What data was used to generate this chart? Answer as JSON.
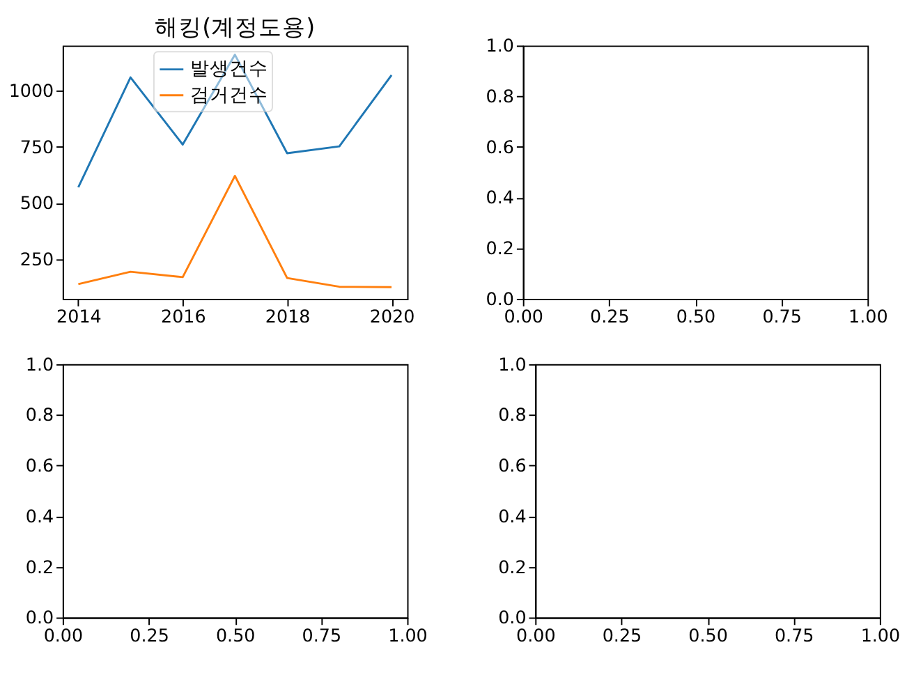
{
  "chart_data": [
    {
      "type": "line",
      "title": "해킹(계정도용)",
      "x": [
        2014,
        2015,
        2016,
        2017,
        2018,
        2019,
        2020
      ],
      "xlim": [
        2013.7,
        2020.3
      ],
      "xticks": [
        2014,
        2016,
        2018,
        2020
      ],
      "ylim": [
        72,
        1203
      ],
      "yticks": [
        250,
        500,
        750,
        1000
      ],
      "grid": false,
      "legend": "top",
      "series": [
        {
          "name": "발생건수",
          "color": "#1f77b4",
          "values": [
            570,
            1061,
            761,
            1162,
            722,
            753,
            1071
          ]
        },
        {
          "name": "검거건수",
          "color": "#ff7f0e",
          "values": [
            138,
            193,
            169,
            621,
            165,
            126,
            124
          ]
        }
      ]
    },
    {
      "type": "line",
      "xlim": [
        0,
        1
      ],
      "ylim": [
        0,
        1
      ],
      "grid": false,
      "xticks": [
        {
          "value": 0,
          "label": "0.00"
        },
        {
          "value": 0.25,
          "label": "0.25"
        },
        {
          "value": 0.5,
          "label": "0.50"
        },
        {
          "value": 0.75,
          "label": "0.75"
        },
        {
          "value": 1,
          "label": "1.00"
        }
      ],
      "yticks": [
        {
          "value": 0,
          "label": "0.0"
        },
        {
          "value": 0.2,
          "label": "0.2"
        },
        {
          "value": 0.4,
          "label": "0.4"
        },
        {
          "value": 0.6,
          "label": "0.6"
        },
        {
          "value": 0.8,
          "label": "0.8"
        },
        {
          "value": 1,
          "label": "1.0"
        }
      ]
    },
    {
      "type": "line",
      "xlim": [
        0,
        1
      ],
      "ylim": [
        0,
        1
      ],
      "grid": false,
      "xticks": [
        {
          "value": 0,
          "label": "0.00"
        },
        {
          "value": 0.25,
          "label": "0.25"
        },
        {
          "value": 0.5,
          "label": "0.50"
        },
        {
          "value": 0.75,
          "label": "0.75"
        },
        {
          "value": 1,
          "label": "1.00"
        }
      ],
      "yticks": [
        {
          "value": 0,
          "label": "0.0"
        },
        {
          "value": 0.2,
          "label": "0.2"
        },
        {
          "value": 0.4,
          "label": "0.4"
        },
        {
          "value": 0.6,
          "label": "0.6"
        },
        {
          "value": 0.8,
          "label": "0.8"
        },
        {
          "value": 1,
          "label": "1.0"
        }
      ]
    },
    {
      "type": "line",
      "xlim": [
        0,
        1
      ],
      "ylim": [
        0,
        1
      ],
      "grid": false,
      "xticks": [
        {
          "value": 0,
          "label": "0.00"
        },
        {
          "value": 0.25,
          "label": "0.25"
        },
        {
          "value": 0.5,
          "label": "0.50"
        },
        {
          "value": 0.75,
          "label": "0.75"
        },
        {
          "value": 1,
          "label": "1.00"
        }
      ],
      "yticks": [
        {
          "value": 0,
          "label": "0.0"
        },
        {
          "value": 0.2,
          "label": "0.2"
        },
        {
          "value": 0.4,
          "label": "0.4"
        },
        {
          "value": 0.6,
          "label": "0.6"
        },
        {
          "value": 0.8,
          "label": "0.8"
        },
        {
          "value": 1,
          "label": "1.0"
        }
      ]
    }
  ]
}
